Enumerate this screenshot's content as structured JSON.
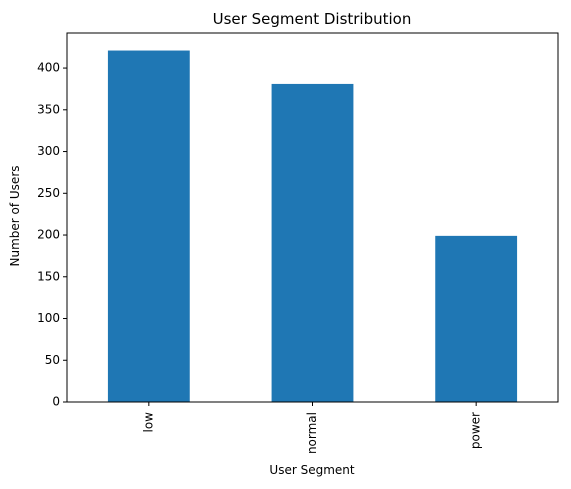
{
  "chart_data": {
    "type": "bar",
    "title": "User Segment Distribution",
    "xlabel": "User Segment",
    "ylabel": "Number of Users",
    "categories": [
      "low",
      "normal",
      "power"
    ],
    "values": [
      421,
      381,
      199
    ],
    "ylim": [
      0,
      442
    ],
    "yticks": [
      0,
      50,
      100,
      150,
      200,
      250,
      300,
      350,
      400
    ],
    "grid": false,
    "legend": "none",
    "colors": {
      "bar": "#1f77b4",
      "axis": "#000000",
      "background": "#ffffff"
    }
  }
}
